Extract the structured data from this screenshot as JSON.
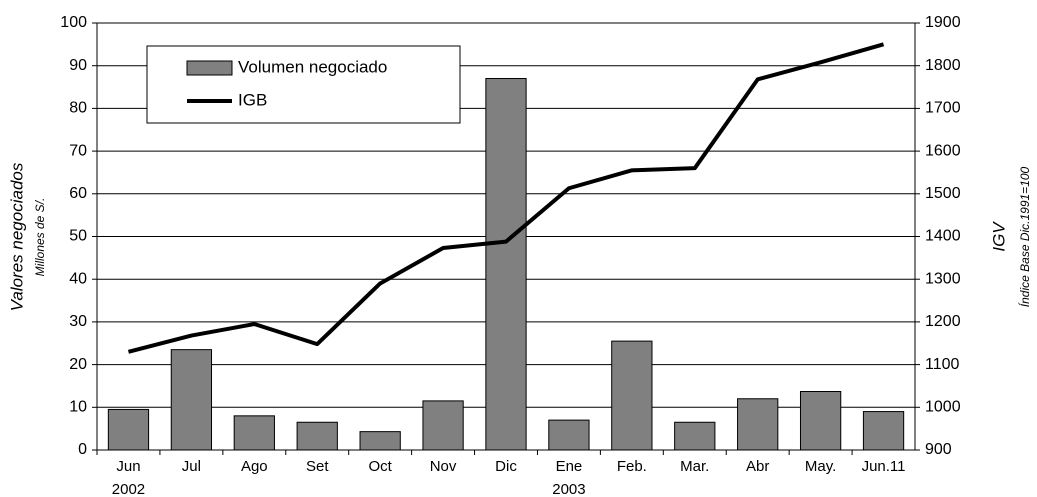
{
  "chart_data": {
    "type": "bar-line",
    "categories": [
      "Jun",
      "Jul",
      "Ago",
      "Set",
      "Oct",
      "Nov",
      "Dic",
      "Ene",
      "Feb.",
      "Mar.",
      "Abr",
      "May.",
      "Jun.11"
    ],
    "category_sublabels": [
      "2002",
      null,
      null,
      null,
      null,
      null,
      null,
      "2003",
      null,
      null,
      null,
      null,
      null
    ],
    "series": [
      {
        "name": "Volumen negociado",
        "type": "bar",
        "color": "#808080",
        "values": [
          9.5,
          23.5,
          8,
          6.5,
          4.3,
          11.5,
          87,
          7,
          25.5,
          6.5,
          12,
          13.7,
          9
        ]
      },
      {
        "name": "IGB",
        "type": "line",
        "axis": "y2",
        "color": "#000000",
        "values": [
          1130,
          1168,
          1195,
          1148,
          1290,
          1373,
          1388,
          1513,
          1555,
          1560,
          1768,
          1808,
          1850
        ]
      }
    ],
    "ylabel": "Valores negociados",
    "ylabel_sub": "Millones de S/.",
    "y2label": "IGV",
    "y2label_sub": "Índice Base Dic.1991=100",
    "ylim": [
      0,
      100
    ],
    "yticks": [
      0,
      10,
      20,
      30,
      40,
      50,
      60,
      70,
      80,
      90,
      100
    ],
    "y2lim": [
      900,
      1900
    ],
    "y2ticks": [
      900,
      1000,
      1100,
      1200,
      1300,
      1400,
      1500,
      1600,
      1700,
      1800,
      1900
    ],
    "grid": true,
    "legend": "upper left"
  }
}
